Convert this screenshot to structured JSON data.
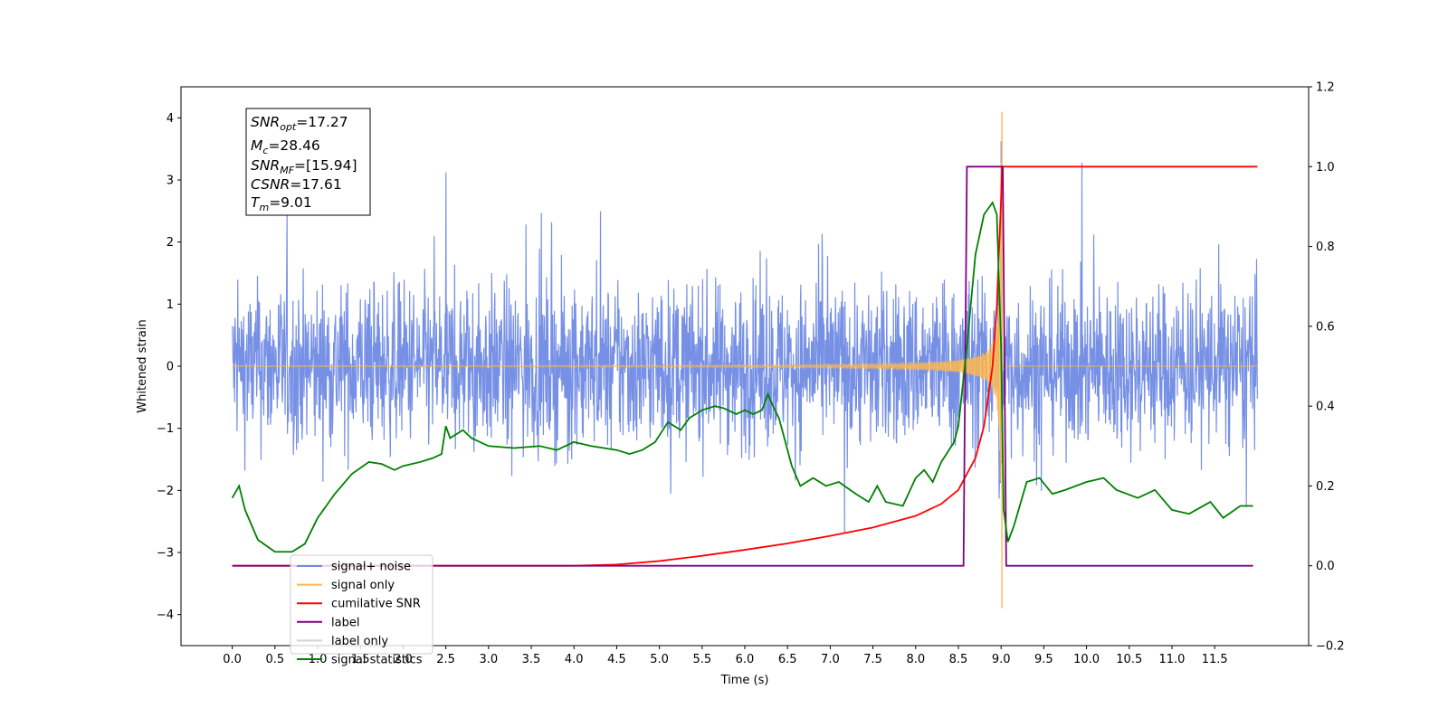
{
  "chart_data": {
    "type": "line",
    "xlabel": "Time (s)",
    "ylabel": "Whitened strain",
    "xlim": [
      -0.6,
      12.6
    ],
    "ylim": [
      -4.5,
      4.5
    ],
    "y2lim": [
      -0.2,
      1.2
    ],
    "x_ticks": [
      "0.0",
      "0.5",
      "1.0",
      "1.5",
      "2.0",
      "2.5",
      "3.0",
      "3.5",
      "4.0",
      "4.5",
      "5.0",
      "5.5",
      "6.0",
      "6.5",
      "7.0",
      "7.5",
      "8.0",
      "8.5",
      "9.0",
      "9.5",
      "10.0",
      "10.5",
      "11.0",
      "11.5"
    ],
    "y_ticks": [
      "−4",
      "−3",
      "−2",
      "−1",
      "0",
      "1",
      "2",
      "3",
      "4"
    ],
    "y2_ticks": [
      "−0.2",
      "0.0",
      "0.2",
      "0.4",
      "0.6",
      "0.8",
      "1.0",
      "1.2"
    ],
    "grid": false,
    "legend_position": "lower-left",
    "stats_box": {
      "snr_opt_label": "SNR",
      "snr_opt_sub": "opt",
      "snr_opt_value": "=17.27",
      "mc_label": "M",
      "mc_sub": "c",
      "mc_value": "=28.46",
      "snr_mf_label": "SNR",
      "snr_mf_sub": "MF",
      "snr_mf_value": "=[15.94]",
      "csnr_label": "CSNR",
      "csnr_value": "=17.61",
      "tm_label": "T",
      "tm_sub": "m",
      "tm_value": "=9.01"
    },
    "series": [
      {
        "name": "signal+ noise",
        "color": "#6f8ae4",
        "axis": "left",
        "envelope_amplitude": 2.5,
        "x_range": [
          0.0,
          12.0
        ]
      },
      {
        "name": "signal only",
        "color": "#ffb84d",
        "axis": "left",
        "chirp_end_time": 9.01,
        "peak_amplitude": 4.1
      },
      {
        "name": "cumilative SNR",
        "color": "#ff0000",
        "axis": "right",
        "x": [
          0.0,
          4.0,
          4.5,
          5.0,
          5.5,
          6.0,
          6.5,
          7.0,
          7.5,
          8.0,
          8.3,
          8.5,
          8.7,
          8.8,
          8.9,
          8.95,
          9.0,
          9.01,
          9.05,
          12.0
        ],
        "y": [
          0.0,
          0.0,
          0.003,
          0.012,
          0.025,
          0.04,
          0.056,
          0.075,
          0.096,
          0.125,
          0.155,
          0.19,
          0.27,
          0.35,
          0.5,
          0.65,
          0.92,
          1.0,
          1.0,
          1.0
        ]
      },
      {
        "name": "label",
        "color": "#800080",
        "axis": "right",
        "x": [
          0.0,
          8.56,
          8.6,
          9.0,
          9.02,
          9.06,
          11.95
        ],
        "y": [
          0.0,
          0.0,
          1.0,
          1.0,
          1.0,
          0.0,
          0.0
        ]
      },
      {
        "name": "label only",
        "color": "#d3d3d3",
        "axis": "right",
        "x": [],
        "y": []
      },
      {
        "name": "signal statistics",
        "color": "#008000",
        "axis": "right",
        "x": [
          0.0,
          0.08,
          0.15,
          0.3,
          0.5,
          0.7,
          0.85,
          1.0,
          1.2,
          1.4,
          1.6,
          1.75,
          1.9,
          2.0,
          2.2,
          2.35,
          2.45,
          2.5,
          2.55,
          2.7,
          2.8,
          3.0,
          3.3,
          3.6,
          3.8,
          4.0,
          4.2,
          4.5,
          4.65,
          4.8,
          4.95,
          5.1,
          5.25,
          5.35,
          5.5,
          5.65,
          5.75,
          5.9,
          6.0,
          6.1,
          6.2,
          6.27,
          6.33,
          6.4,
          6.55,
          6.65,
          6.8,
          6.95,
          7.1,
          7.3,
          7.45,
          7.55,
          7.65,
          7.85,
          8.0,
          8.1,
          8.2,
          8.3,
          8.45,
          8.5,
          8.6,
          8.7,
          8.8,
          8.9,
          8.95,
          9.0,
          9.03,
          9.08,
          9.15,
          9.3,
          9.45,
          9.6,
          9.75,
          10.0,
          10.2,
          10.35,
          10.6,
          10.8,
          11.0,
          11.2,
          11.45,
          11.6,
          11.8,
          11.95
        ],
        "y": [
          0.17,
          0.2,
          0.14,
          0.065,
          0.035,
          0.035,
          0.055,
          0.12,
          0.18,
          0.23,
          0.26,
          0.255,
          0.24,
          0.25,
          0.26,
          0.27,
          0.28,
          0.35,
          0.32,
          0.34,
          0.32,
          0.3,
          0.295,
          0.3,
          0.29,
          0.31,
          0.3,
          0.29,
          0.28,
          0.29,
          0.31,
          0.36,
          0.34,
          0.37,
          0.39,
          0.4,
          0.395,
          0.38,
          0.39,
          0.38,
          0.39,
          0.43,
          0.4,
          0.37,
          0.25,
          0.2,
          0.22,
          0.2,
          0.21,
          0.18,
          0.16,
          0.2,
          0.16,
          0.15,
          0.22,
          0.24,
          0.21,
          0.26,
          0.31,
          0.35,
          0.55,
          0.78,
          0.88,
          0.91,
          0.88,
          0.55,
          0.14,
          0.06,
          0.1,
          0.21,
          0.22,
          0.18,
          0.19,
          0.21,
          0.22,
          0.19,
          0.17,
          0.19,
          0.14,
          0.13,
          0.16,
          0.12,
          0.15,
          0.15
        ]
      }
    ]
  }
}
